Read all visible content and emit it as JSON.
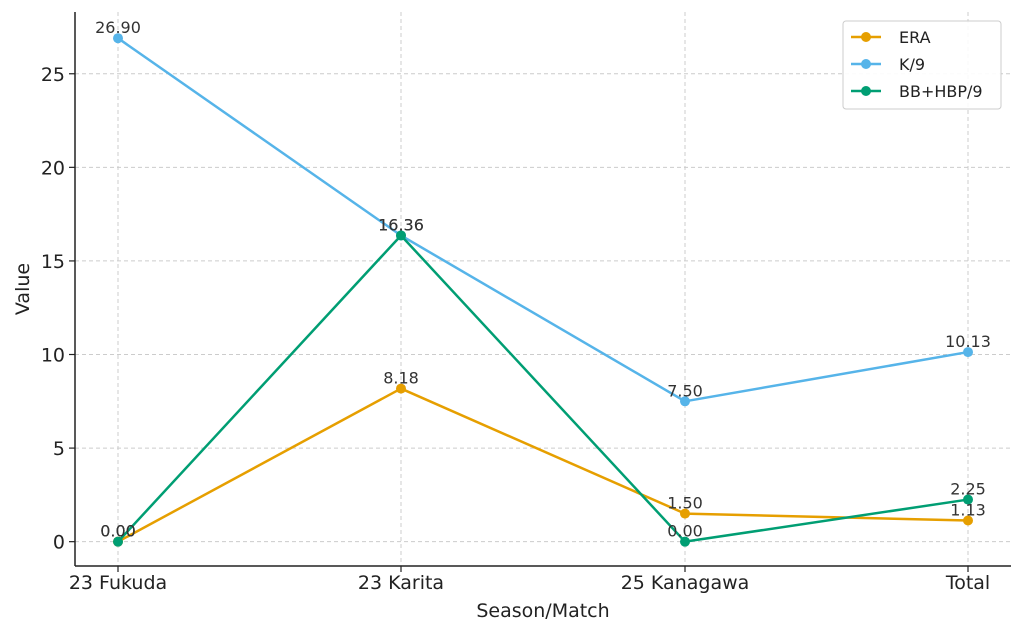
{
  "chart_data": {
    "type": "line",
    "title": "",
    "xlabel": "Season/Match",
    "ylabel": "Value",
    "categories": [
      "23 Fukuda",
      "23 Karita",
      "25 Kanagawa",
      "Total"
    ],
    "ylim": [
      -1.3,
      28.3
    ],
    "yticks": [
      0,
      5,
      10,
      15,
      20,
      25
    ],
    "grid": true,
    "legend_position": "top-right",
    "series": [
      {
        "name": "ERA",
        "color": "#E69F00",
        "values": [
          0.0,
          8.18,
          1.5,
          1.13
        ],
        "labels": [
          "0.00",
          "8.18",
          "1.50",
          "1.13"
        ]
      },
      {
        "name": "K/9",
        "color": "#56B4E9",
        "values": [
          26.9,
          16.36,
          7.5,
          10.13
        ],
        "labels": [
          "26.90",
          "16.36",
          "7.50",
          "10.13"
        ]
      },
      {
        "name": "BB+HBP/9",
        "color": "#009E73",
        "values": [
          0.0,
          16.36,
          0.0,
          2.25
        ],
        "labels": [
          "0.00",
          "16.36",
          "0.00",
          "2.25"
        ]
      }
    ]
  }
}
